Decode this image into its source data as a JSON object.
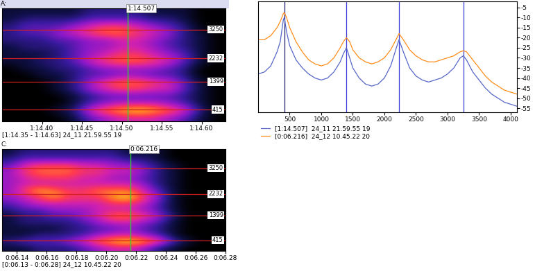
{
  "chart_data": [
    {
      "type": "heatmap",
      "title": "A:",
      "caption": "[1:14.35 - 1:14.63] 24_11 21.59.55 19",
      "tick_labels": "x",
      "xlim": [
        74.35,
        74.63
      ],
      "ylim": [
        0,
        4000
      ],
      "xticks": [
        {
          "value": 74.4,
          "label": "1:14.40"
        },
        {
          "value": 74.45,
          "label": "1:14.45"
        },
        {
          "value": 74.5,
          "label": "1:14.50"
        },
        {
          "value": 74.55,
          "label": "1:14.55"
        },
        {
          "value": 74.6,
          "label": "1:14.60"
        }
      ],
      "cursor": {
        "value": 74.507,
        "label": "1:14.507"
      },
      "formants": [
        415,
        1399,
        2232,
        3250
      ],
      "color_range": [
        0,
        10
      ],
      "time_edges": [
        74.35,
        74.37,
        74.39,
        74.41,
        74.43,
        74.45,
        74.47,
        74.49,
        74.51,
        74.53,
        74.55,
        74.57,
        74.59,
        74.61,
        74.63
      ],
      "freq_edges": [
        0,
        250,
        500,
        750,
        1000,
        1250,
        1500,
        1750,
        2000,
        2250,
        2500,
        2750,
        3000,
        3250,
        3500,
        3750,
        4000
      ],
      "cells": [
        [
          0,
          0,
          0,
          0,
          1,
          3,
          4,
          5,
          5,
          5,
          4,
          3,
          1,
          0
        ],
        [
          0,
          0,
          0,
          1,
          2,
          5,
          7,
          8,
          9,
          8,
          7,
          5,
          2,
          0
        ],
        [
          0,
          0,
          0,
          0,
          1,
          3,
          4,
          5,
          5,
          5,
          4,
          3,
          1,
          0
        ],
        [
          0,
          0,
          0,
          0,
          1,
          2,
          3,
          3,
          3,
          3,
          3,
          2,
          1,
          0
        ],
        [
          0,
          0,
          0,
          1,
          2,
          4,
          5,
          6,
          6,
          5,
          5,
          3,
          1,
          0
        ],
        [
          0,
          0,
          0,
          1,
          2,
          4,
          6,
          7,
          7,
          6,
          5,
          3,
          1,
          0
        ],
        [
          0,
          0,
          1,
          1,
          2,
          3,
          3,
          4,
          4,
          3,
          3,
          2,
          0,
          0
        ],
        [
          0,
          1,
          1,
          2,
          2,
          3,
          4,
          4,
          4,
          4,
          3,
          2,
          0,
          0
        ],
        [
          1,
          1,
          2,
          2,
          3,
          5,
          6,
          7,
          7,
          6,
          5,
          3,
          1,
          0
        ],
        [
          1,
          1,
          1,
          2,
          3,
          4,
          5,
          6,
          6,
          5,
          4,
          3,
          1,
          0
        ],
        [
          1,
          2,
          2,
          2,
          3,
          4,
          4,
          5,
          5,
          4,
          3,
          2,
          1,
          0
        ],
        [
          2,
          2,
          2,
          3,
          3,
          4,
          4,
          5,
          5,
          4,
          3,
          2,
          1,
          0
        ],
        [
          2,
          3,
          3,
          4,
          5,
          6,
          7,
          7,
          6,
          5,
          4,
          2,
          1,
          0
        ],
        [
          2,
          3,
          3,
          3,
          4,
          5,
          6,
          6,
          5,
          4,
          3,
          2,
          0,
          0
        ],
        [
          1,
          2,
          2,
          2,
          2,
          3,
          3,
          3,
          3,
          2,
          2,
          1,
          0,
          0
        ],
        [
          1,
          1,
          1,
          1,
          1,
          2,
          2,
          2,
          2,
          1,
          1,
          1,
          0,
          0
        ]
      ]
    },
    {
      "type": "heatmap",
      "title": "C:",
      "caption": "[0:06.13 - 0:06.28] 24_12 10.45.22 20",
      "tick_labels": "x",
      "xlim": [
        6.13,
        6.28
      ],
      "ylim": [
        0,
        4000
      ],
      "xticks": [
        {
          "value": 6.14,
          "label": "0:06.14"
        },
        {
          "value": 6.16,
          "label": "0:06.16"
        },
        {
          "value": 6.18,
          "label": "0:06.18"
        },
        {
          "value": 6.2,
          "label": "0:06.20"
        },
        {
          "value": 6.22,
          "label": "0:06.22"
        },
        {
          "value": 6.24,
          "label": "0:06.24"
        },
        {
          "value": 6.26,
          "label": "0:06.26"
        },
        {
          "value": 6.28,
          "label": "0:06.28"
        }
      ],
      "cursor": {
        "value": 6.216,
        "label": "0:06.216"
      },
      "formants": [
        415,
        1399,
        2232,
        3250
      ],
      "color_range": [
        0,
        10
      ],
      "time_edges": [
        6.13,
        6.14,
        6.15,
        6.16,
        6.17,
        6.18,
        6.19,
        6.2,
        6.21,
        6.22,
        6.23,
        6.24,
        6.25,
        6.26,
        6.27,
        6.28
      ],
      "freq_edges": [
        0,
        250,
        500,
        750,
        1000,
        1250,
        1500,
        1750,
        2000,
        2250,
        2500,
        2750,
        3000,
        3250,
        3500,
        3750,
        4000
      ],
      "cells": [
        [
          1,
          1,
          2,
          2,
          2,
          3,
          4,
          5,
          5,
          4,
          2,
          1,
          0,
          0,
          0
        ],
        [
          2,
          3,
          3,
          3,
          4,
          5,
          7,
          8,
          9,
          8,
          6,
          3,
          1,
          0,
          0
        ],
        [
          1,
          1,
          2,
          2,
          2,
          3,
          4,
          5,
          5,
          4,
          3,
          1,
          0,
          0,
          0
        ],
        [
          1,
          1,
          1,
          1,
          2,
          2,
          3,
          3,
          4,
          3,
          2,
          1,
          0,
          0,
          0
        ],
        [
          1,
          2,
          2,
          2,
          2,
          3,
          4,
          5,
          5,
          4,
          3,
          1,
          0,
          0,
          0
        ],
        [
          1,
          2,
          2,
          3,
          3,
          4,
          5,
          7,
          7,
          6,
          4,
          2,
          0,
          0,
          0
        ],
        [
          2,
          3,
          3,
          4,
          4,
          4,
          5,
          5,
          5,
          4,
          3,
          1,
          0,
          0,
          0
        ],
        [
          3,
          4,
          5,
          5,
          5,
          5,
          5,
          6,
          6,
          5,
          3,
          1,
          0,
          0,
          0
        ],
        [
          4,
          5,
          6,
          8,
          6,
          6,
          6,
          8,
          9,
          6,
          4,
          1,
          0,
          0,
          0
        ],
        [
          4,
          6,
          8,
          7,
          6,
          6,
          7,
          7,
          7,
          5,
          3,
          1,
          0,
          0,
          0
        ],
        [
          4,
          5,
          5,
          5,
          5,
          5,
          5,
          5,
          5,
          4,
          2,
          1,
          0,
          0,
          0
        ],
        [
          4,
          5,
          6,
          6,
          6,
          5,
          5,
          4,
          4,
          3,
          2,
          1,
          0,
          0,
          0
        ],
        [
          4,
          6,
          7,
          7,
          7,
          6,
          6,
          5,
          5,
          4,
          2,
          1,
          0,
          0,
          0
        ],
        [
          3,
          5,
          6,
          6,
          6,
          5,
          5,
          4,
          4,
          3,
          2,
          1,
          0,
          0,
          0
        ],
        [
          2,
          3,
          3,
          3,
          3,
          3,
          3,
          3,
          2,
          2,
          1,
          0,
          0,
          0,
          0
        ],
        [
          1,
          2,
          2,
          2,
          2,
          2,
          2,
          2,
          1,
          1,
          1,
          0,
          0,
          0,
          0
        ]
      ]
    },
    {
      "type": "line",
      "legend": "upper left",
      "xlim": [
        0,
        4100
      ],
      "ylim": [
        -57,
        -2
      ],
      "xticks": [
        500,
        1000,
        1500,
        2000,
        2500,
        3000,
        3500,
        4000
      ],
      "yticks": [
        -5,
        -10,
        -15,
        -20,
        -25,
        -30,
        -35,
        -40,
        -45,
        -50,
        -55
      ],
      "vlines": {
        "values": [
          415,
          1399,
          2232,
          3250
        ],
        "colors": [
          "#1c1c6e",
          "#3a3ad6",
          "#3a3ad6",
          "#3a3ad6"
        ]
      },
      "x": [
        0,
        100,
        200,
        300,
        350,
        400,
        415,
        450,
        500,
        600,
        700,
        800,
        900,
        1000,
        1100,
        1200,
        1300,
        1350,
        1399,
        1450,
        1500,
        1600,
        1700,
        1800,
        1900,
        2000,
        2100,
        2200,
        2232,
        2300,
        2400,
        2500,
        2600,
        2700,
        2800,
        2900,
        3000,
        3100,
        3200,
        3250,
        3300,
        3400,
        3500,
        3600,
        3700,
        3800,
        3900,
        4000,
        4100
      ],
      "series": [
        {
          "name": "[1:14.507]  24_11 21.59.55 19",
          "color": "#5566c8",
          "values": [
            -38,
            -37,
            -34,
            -27,
            -22,
            -11,
            -10,
            -17,
            -24,
            -31,
            -35,
            -38,
            -40,
            -41,
            -40,
            -37,
            -32,
            -28,
            -25,
            -30,
            -35,
            -40,
            -43,
            -44,
            -43,
            -40,
            -34,
            -24,
            -21,
            -27,
            -35,
            -39,
            -41,
            -42,
            -41,
            -40,
            -38,
            -35,
            -30,
            -29,
            -31,
            -37,
            -41,
            -45,
            -48,
            -50,
            -52,
            -53,
            -54
          ]
        },
        {
          "name": "[0:06.216]  24_12 10.45.22 20",
          "color": "#ff8c1a",
          "values": [
            -21,
            -21,
            -19,
            -15,
            -12,
            -8,
            -7.5,
            -10,
            -15,
            -22,
            -27,
            -31,
            -33,
            -34,
            -33,
            -30,
            -25,
            -22,
            -20,
            -22,
            -26,
            -30,
            -32,
            -33,
            -32,
            -30,
            -26,
            -20,
            -18,
            -21,
            -26,
            -29,
            -31,
            -32,
            -32,
            -31,
            -30,
            -29,
            -27,
            -26.5,
            -27,
            -31,
            -35,
            -39,
            -42,
            -44,
            -46,
            -47,
            -48
          ]
        }
      ]
    }
  ]
}
